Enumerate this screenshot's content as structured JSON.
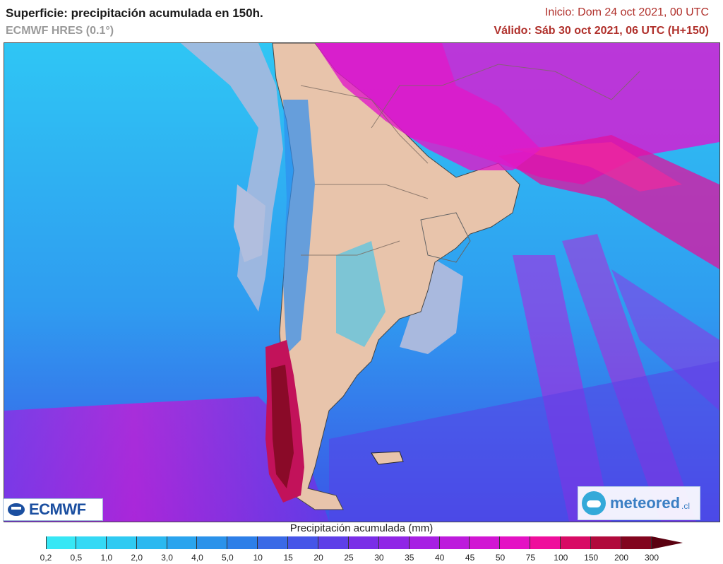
{
  "header": {
    "title": "Superficie: precipitación acumulada en 150h.",
    "model": "ECMWF HRES (0.1°)",
    "init": "Inicio: Dom 24 oct 2021, 00 UTC",
    "valid": "Válido: Sáb 30 oct 2021, 06 UTC (H+150)"
  },
  "logos": {
    "ecmwf": "ECMWF",
    "meteored": "meteored",
    "meteored_suffix": ".cl"
  },
  "legend": {
    "title": "Precipitación acumulada (mm)",
    "labels": [
      "0,2",
      "0,5",
      "1,0",
      "2,0",
      "3,0",
      "4,0",
      "5,0",
      "10",
      "15",
      "20",
      "25",
      "30",
      "35",
      "40",
      "45",
      "50",
      "75",
      "100",
      "150",
      "200",
      "300"
    ],
    "colors": [
      "#37e7f5",
      "#34d9f5",
      "#2fcaf2",
      "#2bb8f0",
      "#2aa4ee",
      "#2b92ea",
      "#2d7fe8",
      "#3a6ae6",
      "#4655e8",
      "#5e3fe8",
      "#7a2ee7",
      "#9026e6",
      "#a71fe3",
      "#bd1bdc",
      "#d116d3",
      "#e412c4",
      "#ef0e9c",
      "#d80b65",
      "#b10a3c",
      "#82051e",
      "#5a0010"
    ]
  },
  "map": {
    "ocean_color": "#2aa8ee",
    "land_color": "#e8c4ab",
    "dry_color": "#a8b8d8"
  }
}
